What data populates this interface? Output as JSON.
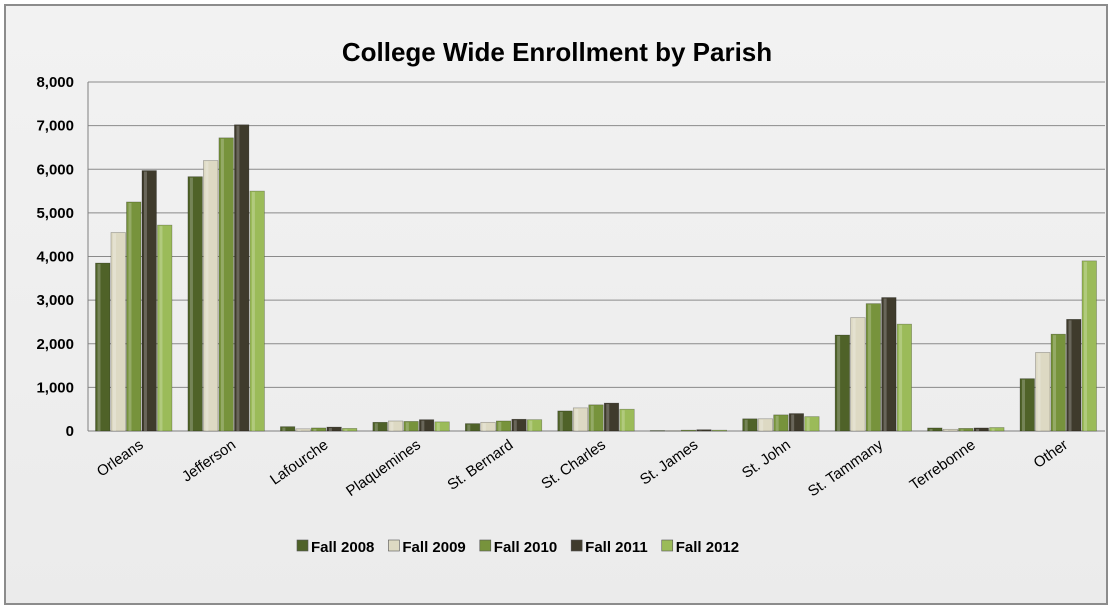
{
  "chart_data": {
    "type": "bar",
    "title": "College Wide Enrollment by Parish",
    "xlabel": "",
    "ylabel": "",
    "ylim": [
      0,
      8000
    ],
    "yticks": [
      "0",
      "1,000",
      "2,000",
      "3,000",
      "4,000",
      "5,000",
      "6,000",
      "7,000",
      "8,000"
    ],
    "categories": [
      "Orleans",
      "Jefferson",
      "Lafourche",
      "Plaquemines",
      "St. Bernard",
      "St. Charles",
      "St. James",
      "St. John",
      "St. Tammany",
      "Terrebonne",
      "Other"
    ],
    "series": [
      {
        "name": "Fall 2008",
        "color": "#4f6228",
        "values": [
          3850,
          5830,
          100,
          200,
          170,
          460,
          10,
          280,
          2200,
          70,
          1200
        ]
      },
      {
        "name": "Fall 2009",
        "color": "#ddd9c3",
        "values": [
          4550,
          6200,
          50,
          230,
          200,
          530,
          10,
          280,
          2600,
          40,
          1800
        ]
      },
      {
        "name": "Fall 2010",
        "color": "#77933c",
        "values": [
          5250,
          6720,
          70,
          220,
          230,
          600,
          20,
          370,
          2920,
          60,
          2220
        ]
      },
      {
        "name": "Fall 2011",
        "color": "#3f3b2c",
        "values": [
          5970,
          7020,
          90,
          260,
          270,
          640,
          30,
          400,
          3060,
          70,
          2560
        ]
      },
      {
        "name": "Fall 2012",
        "color": "#9bbb59",
        "values": [
          4720,
          5500,
          60,
          210,
          260,
          500,
          20,
          330,
          2450,
          80,
          3900
        ]
      }
    ],
    "grid": true,
    "legend": "bottom"
  }
}
